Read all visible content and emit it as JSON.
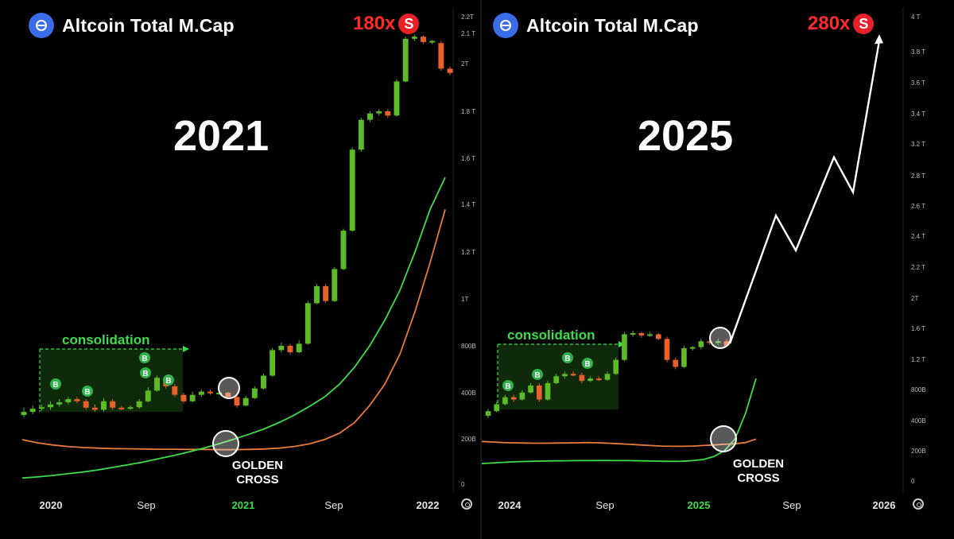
{
  "colors": {
    "background": "#000000",
    "up_candle": "#5dbb27",
    "down_candle": "#e8602a",
    "fast_ma": "#3ddc4a",
    "slow_ma": "#e87a3a",
    "accent_red": "#ff2b2b",
    "consolidation": "#3ddc4a",
    "logo_blue": "#3b6de8",
    "projection": "#ffffff"
  },
  "panels": [
    {
      "title": "Altcoin Total M.Cap",
      "multiplier": "180x",
      "badge": "S",
      "year_label": "2021",
      "consolidation_label": "consolidation",
      "cross_label_1": "GOLDEN",
      "cross_label_2": "CROSS"
    },
    {
      "title": "Altcoin Total M.Cap",
      "multiplier": "280x",
      "badge": "S",
      "year_label": "2025",
      "consolidation_label": "consolidation",
      "cross_label_1": "GOLDEN",
      "cross_label_2": "CROSS"
    }
  ],
  "chart_data": [
    {
      "type": "candlestick",
      "title": "Altcoin Total M.Cap",
      "y_unit": "USD market cap",
      "ylim": [
        0,
        2200000000000
      ],
      "y_ticks": [
        "0",
        "200B",
        "400B",
        "800B",
        "1T",
        "1.2 T",
        "1.4 T",
        "1.6 T",
        "1.8 T",
        "2T",
        "2.1 T",
        "2.2T"
      ],
      "x_ticks": [
        "2020",
        "Sep",
        "2021",
        "Sep",
        "2022"
      ],
      "x_tick_highlight": "2021",
      "candles": [
        {
          "o": 335,
          "c": 350,
          "h": 370,
          "l": 325
        },
        {
          "o": 350,
          "c": 365,
          "h": 380,
          "l": 340
        },
        {
          "o": 365,
          "c": 372,
          "h": 385,
          "l": 355
        },
        {
          "o": 372,
          "c": 385,
          "h": 400,
          "l": 360
        },
        {
          "o": 385,
          "c": 395,
          "h": 410,
          "l": 375
        },
        {
          "o": 395,
          "c": 410,
          "h": 420,
          "l": 385
        },
        {
          "o": 410,
          "c": 400,
          "h": 420,
          "l": 390
        },
        {
          "o": 400,
          "c": 370,
          "h": 410,
          "l": 360
        },
        {
          "o": 370,
          "c": 360,
          "h": 385,
          "l": 350
        },
        {
          "o": 360,
          "c": 400,
          "h": 415,
          "l": 350
        },
        {
          "o": 400,
          "c": 370,
          "h": 410,
          "l": 360
        },
        {
          "o": 370,
          "c": 368,
          "h": 378,
          "l": 358
        },
        {
          "o": 368,
          "c": 372,
          "h": 380,
          "l": 360
        },
        {
          "o": 372,
          "c": 400,
          "h": 410,
          "l": 365
        },
        {
          "o": 400,
          "c": 450,
          "h": 465,
          "l": 395
        },
        {
          "o": 450,
          "c": 510,
          "h": 520,
          "l": 445
        },
        {
          "o": 510,
          "c": 470,
          "h": 520,
          "l": 460
        },
        {
          "o": 470,
          "c": 430,
          "h": 480,
          "l": 420
        },
        {
          "o": 430,
          "c": 400,
          "h": 440,
          "l": 390
        },
        {
          "o": 400,
          "c": 430,
          "h": 445,
          "l": 395
        },
        {
          "o": 430,
          "c": 445,
          "h": 455,
          "l": 420
        },
        {
          "o": 445,
          "c": 440,
          "h": 455,
          "l": 430
        },
        {
          "o": 440,
          "c": 440,
          "h": 450,
          "l": 430
        },
        {
          "o": 440,
          "c": 420,
          "h": 445,
          "l": 410
        },
        {
          "o": 420,
          "c": 380,
          "h": 430,
          "l": 370
        },
        {
          "o": 380,
          "c": 415,
          "h": 425,
          "l": 375
        },
        {
          "o": 415,
          "c": 460,
          "h": 470,
          "l": 410
        },
        {
          "o": 460,
          "c": 520,
          "h": 530,
          "l": 455
        },
        {
          "o": 520,
          "c": 640,
          "h": 650,
          "l": 515
        },
        {
          "o": 640,
          "c": 660,
          "h": 675,
          "l": 630
        },
        {
          "o": 660,
          "c": 630,
          "h": 670,
          "l": 620
        },
        {
          "o": 630,
          "c": 670,
          "h": 685,
          "l": 625
        },
        {
          "o": 670,
          "c": 860,
          "h": 870,
          "l": 665
        },
        {
          "o": 860,
          "c": 940,
          "h": 950,
          "l": 855
        },
        {
          "o": 940,
          "c": 870,
          "h": 950,
          "l": 860
        },
        {
          "o": 870,
          "c": 1020,
          "h": 1030,
          "l": 865
        },
        {
          "o": 1020,
          "c": 1200,
          "h": 1210,
          "l": 1015
        },
        {
          "o": 1200,
          "c": 1580,
          "h": 1590,
          "l": 1195
        },
        {
          "o": 1580,
          "c": 1720,
          "h": 1730,
          "l": 1570
        },
        {
          "o": 1720,
          "c": 1750,
          "h": 1760,
          "l": 1710
        },
        {
          "o": 1750,
          "c": 1760,
          "h": 1770,
          "l": 1740
        },
        {
          "o": 1760,
          "c": 1740,
          "h": 1770,
          "l": 1730
        },
        {
          "o": 1740,
          "c": 1900,
          "h": 1910,
          "l": 1735
        },
        {
          "o": 1900,
          "c": 2100,
          "h": 2110,
          "l": 1895
        },
        {
          "o": 2100,
          "c": 2110,
          "h": 2120,
          "l": 2090
        },
        {
          "o": 2110,
          "c": 2085,
          "h": 2115,
          "l": 2075
        },
        {
          "o": 2085,
          "c": 2090,
          "h": 2095,
          "l": 2075
        },
        {
          "o": 2080,
          "c": 1960,
          "h": 2090,
          "l": 1950
        },
        {
          "o": 1960,
          "c": 1940,
          "h": 1970,
          "l": 1930
        }
      ],
      "fast_ma": [
        40,
        45,
        52,
        60,
        68,
        78,
        90,
        102,
        115,
        130,
        145,
        162,
        180,
        200,
        222,
        245,
        270,
        300,
        335,
        375,
        420,
        480,
        560,
        660,
        780,
        920,
        1100,
        1300,
        1450
      ],
      "slow_ma": [
        220,
        205,
        195,
        188,
        183,
        180,
        178,
        177,
        176,
        175,
        175,
        174,
        174,
        173,
        173,
        174,
        176,
        180,
        188,
        200,
        220,
        250,
        300,
        380,
        480,
        620,
        820,
        1050,
        1300
      ],
      "signals": [
        "B",
        "B",
        "B",
        "B",
        "B"
      ],
      "annotations": [
        "consolidation",
        "GOLDEN CROSS"
      ]
    },
    {
      "type": "candlestick",
      "title": "Altcoin Total M.Cap",
      "y_unit": "USD market cap",
      "ylim": [
        0,
        4000000000000
      ],
      "y_ticks": [
        "0",
        "200B",
        "400B",
        "800B",
        "1.2 T",
        "1.6 T",
        "2T",
        "2.2 T",
        "2.4 T",
        "2.6 T",
        "2.8 T",
        "3.2 T",
        "3.4 T",
        "3.6 T",
        "3.8 T",
        "4 T"
      ],
      "x_ticks": [
        "2024",
        "Sep",
        "2025",
        "Sep",
        "2026"
      ],
      "x_tick_highlight": "2025",
      "candles": [
        {
          "o": 580,
          "c": 620,
          "h": 640,
          "l": 560
        },
        {
          "o": 620,
          "c": 680,
          "h": 700,
          "l": 610
        },
        {
          "o": 680,
          "c": 740,
          "h": 760,
          "l": 670
        },
        {
          "o": 740,
          "c": 720,
          "h": 760,
          "l": 700
        },
        {
          "o": 720,
          "c": 780,
          "h": 800,
          "l": 710
        },
        {
          "o": 780,
          "c": 840,
          "h": 860,
          "l": 770
        },
        {
          "o": 840,
          "c": 720,
          "h": 860,
          "l": 700
        },
        {
          "o": 720,
          "c": 860,
          "h": 880,
          "l": 710
        },
        {
          "o": 860,
          "c": 920,
          "h": 940,
          "l": 850
        },
        {
          "o": 920,
          "c": 940,
          "h": 960,
          "l": 900
        },
        {
          "o": 940,
          "c": 930,
          "h": 960,
          "l": 920
        },
        {
          "o": 930,
          "c": 880,
          "h": 950,
          "l": 860
        },
        {
          "o": 880,
          "c": 900,
          "h": 920,
          "l": 870
        },
        {
          "o": 900,
          "c": 890,
          "h": 920,
          "l": 880
        },
        {
          "o": 890,
          "c": 940,
          "h": 960,
          "l": 880
        },
        {
          "o": 940,
          "c": 1060,
          "h": 1080,
          "l": 930
        },
        {
          "o": 1060,
          "c": 1280,
          "h": 1300,
          "l": 1050
        },
        {
          "o": 1280,
          "c": 1290,
          "h": 1310,
          "l": 1260
        },
        {
          "o": 1290,
          "c": 1270,
          "h": 1300,
          "l": 1250
        },
        {
          "o": 1270,
          "c": 1280,
          "h": 1300,
          "l": 1260
        },
        {
          "o": 1280,
          "c": 1240,
          "h": 1290,
          "l": 1230
        },
        {
          "o": 1240,
          "c": 1060,
          "h": 1260,
          "l": 1040
        },
        {
          "o": 1060,
          "c": 1000,
          "h": 1080,
          "l": 980
        },
        {
          "o": 1000,
          "c": 1160,
          "h": 1180,
          "l": 990
        },
        {
          "o": 1160,
          "c": 1170,
          "h": 1180,
          "l": 1140
        },
        {
          "o": 1170,
          "c": 1220,
          "h": 1240,
          "l": 1150
        },
        {
          "o": 1220,
          "c": 1210,
          "h": 1230,
          "l": 1190
        },
        {
          "o": 1210,
          "c": 1220,
          "h": 1240,
          "l": 1190
        },
        {
          "o": 1220,
          "c": 1180,
          "h": 1240,
          "l": 1170
        }
      ],
      "fast_ma": [
        170,
        175,
        180,
        185,
        188,
        190,
        192,
        193,
        194,
        195,
        195,
        196,
        196,
        195,
        195,
        193,
        192,
        190,
        189,
        190,
        195,
        205,
        230,
        280,
        380,
        600,
        900
      ],
      "slow_ma": [
        360,
        355,
        350,
        348,
        346,
        345,
        345,
        346,
        347,
        348,
        350,
        348,
        345,
        340,
        335,
        330,
        325,
        320,
        318,
        318,
        320,
        325,
        330,
        335,
        340,
        350,
        380
      ],
      "projection": [
        1200,
        2300,
        2000,
        2800,
        2500,
        3800
      ],
      "signals": [
        "B",
        "B",
        "B",
        "B",
        "B"
      ],
      "annotations": [
        "consolidation",
        "GOLDEN CROSS"
      ]
    }
  ]
}
